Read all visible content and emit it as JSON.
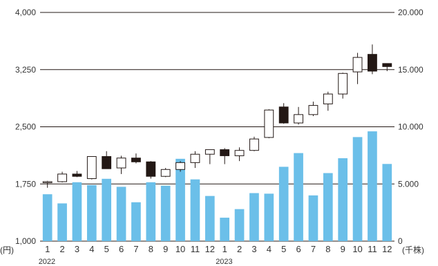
{
  "chart_data": {
    "type": "candlestick+bar",
    "left_axis": {
      "unit_label": "(円)",
      "ylim": [
        1000,
        4000
      ],
      "ticks": [
        1000,
        1750,
        2500,
        3250,
        4000
      ],
      "tick_labels": [
        "1,000",
        "1,750",
        "2,500",
        "3,250",
        "4,000"
      ]
    },
    "right_axis": {
      "unit_label": "(千株)",
      "ylim": [
        0,
        20000
      ],
      "ticks": [
        0,
        5000,
        10000,
        15000,
        20000
      ],
      "tick_labels": [
        "0",
        "5.000",
        "10.000",
        "15.000",
        "20.000"
      ]
    },
    "x_labels": [
      "1",
      "2",
      "3",
      "4",
      "5",
      "6",
      "7",
      "8",
      "9",
      "10",
      "11",
      "12",
      "1",
      "2",
      "3",
      "4",
      "5",
      "6",
      "7",
      "8",
      "9",
      "10",
      "11",
      "12"
    ],
    "year_labels": [
      {
        "label": "2022",
        "index": 0
      },
      {
        "label": "2023",
        "index": 12
      }
    ],
    "price_ohlc": [
      {
        "open": 1770,
        "high": 1790,
        "low": 1700,
        "close": 1780
      },
      {
        "open": 1780,
        "high": 1910,
        "low": 1770,
        "close": 1880
      },
      {
        "open": 1880,
        "high": 1920,
        "low": 1840,
        "close": 1850
      },
      {
        "open": 1820,
        "high": 2110,
        "low": 1810,
        "close": 2110
      },
      {
        "open": 2110,
        "high": 2180,
        "low": 1950,
        "close": 1950
      },
      {
        "open": 1960,
        "high": 2120,
        "low": 1880,
        "close": 2090
      },
      {
        "open": 2090,
        "high": 2150,
        "low": 2020,
        "close": 2040
      },
      {
        "open": 2040,
        "high": 2050,
        "low": 1820,
        "close": 1850
      },
      {
        "open": 1850,
        "high": 1960,
        "low": 1840,
        "close": 1940
      },
      {
        "open": 1940,
        "high": 2050,
        "low": 1910,
        "close": 2030
      },
      {
        "open": 2030,
        "high": 2180,
        "low": 1960,
        "close": 2140
      },
      {
        "open": 2140,
        "high": 2200,
        "low": 2010,
        "close": 2200
      },
      {
        "open": 2200,
        "high": 2220,
        "low": 2010,
        "close": 2120
      },
      {
        "open": 2120,
        "high": 2230,
        "low": 2050,
        "close": 2190
      },
      {
        "open": 2190,
        "high": 2370,
        "low": 2180,
        "close": 2340
      },
      {
        "open": 2360,
        "high": 2730,
        "low": 2350,
        "close": 2720
      },
      {
        "open": 2760,
        "high": 2810,
        "low": 2540,
        "close": 2550
      },
      {
        "open": 2550,
        "high": 2760,
        "low": 2530,
        "close": 2660
      },
      {
        "open": 2660,
        "high": 2830,
        "low": 2640,
        "close": 2780
      },
      {
        "open": 2800,
        "high": 2960,
        "low": 2710,
        "close": 2930
      },
      {
        "open": 2930,
        "high": 3210,
        "low": 2870,
        "close": 3200
      },
      {
        "open": 3220,
        "high": 3470,
        "low": 3060,
        "close": 3410
      },
      {
        "open": 3450,
        "high": 3580,
        "low": 3190,
        "close": 3230
      },
      {
        "open": 3330,
        "high": 3330,
        "low": 3230,
        "close": 3290
      }
    ],
    "volume": [
      4100,
      3300,
      5150,
      4900,
      5450,
      4750,
      3400,
      5150,
      4850,
      7200,
      5400,
      3950,
      2050,
      2800,
      4200,
      4150,
      6500,
      7700,
      4000,
      5950,
      7250,
      9100,
      9600,
      6750
    ],
    "grid": "horizontal",
    "colors": {
      "volume_bar": "#6bbfe9",
      "bear_candle": "#231815",
      "bull_candle": "#ffffff",
      "candle_outline": "#231815",
      "gridline": "#231815",
      "text": "#333333"
    }
  }
}
